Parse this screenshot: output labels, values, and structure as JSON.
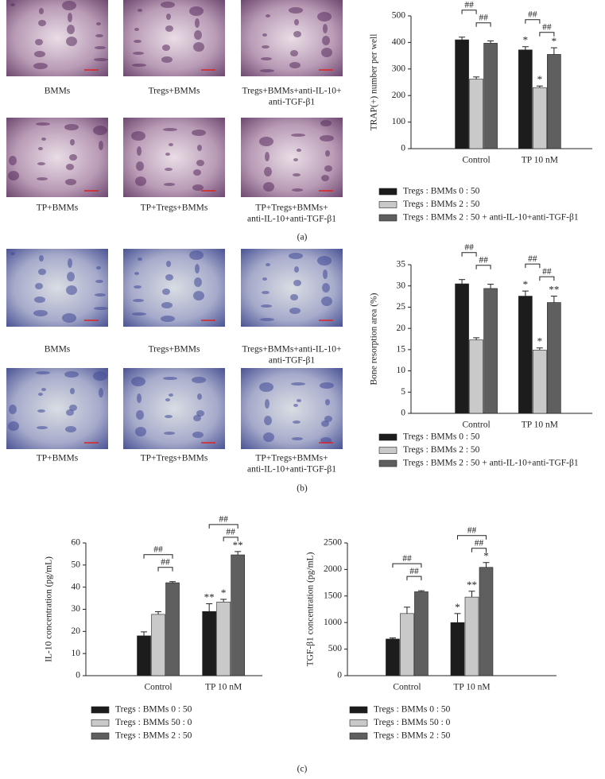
{
  "panels": [
    {
      "label": "(a)",
      "images": [
        {
          "caption": [
            "BMMs"
          ]
        },
        {
          "caption": [
            "Tregs+BMMs"
          ]
        },
        {
          "caption": [
            "Tregs+BMMs+anti-IL-10+",
            "anti-TGF-β1"
          ]
        },
        {
          "caption": [
            "TP+BMMs"
          ]
        },
        {
          "caption": [
            "TP+Tregs+BMMs"
          ]
        },
        {
          "caption": [
            "TP+Tregs+BMMs+",
            "anti-IL-10+anti-TGF-β1"
          ]
        }
      ]
    },
    {
      "label": "(b)",
      "images": [
        {
          "caption": [
            "BMMs"
          ]
        },
        {
          "caption": [
            "Tregs+BMMs"
          ]
        },
        {
          "caption": [
            "Tregs+BMMs+anti-IL-10+",
            "anti-TGF-β1"
          ]
        },
        {
          "caption": [
            "TP+BMMs"
          ]
        },
        {
          "caption": [
            "TP+Tregs+BMMs"
          ]
        },
        {
          "caption": [
            "TP+Tregs+BMMs+",
            "anti-IL-10+anti-TGF-β1"
          ]
        }
      ]
    },
    {
      "label": "(c)",
      "images": []
    }
  ],
  "chart_data": [
    {
      "type": "bar",
      "ylabel": "TRAP(+) number per well",
      "categories": [
        "Control",
        "TP 10 nM"
      ],
      "ylim": [
        0,
        500
      ],
      "yticks": [
        0,
        100,
        200,
        300,
        400,
        500
      ],
      "series": [
        {
          "name": "Tregs : BMMs 0 : 50",
          "color": "#1c1c1c",
          "values": [
            410,
            372
          ],
          "errors": [
            10,
            12
          ],
          "significance": [
            null,
            "*"
          ]
        },
        {
          "name": "Tregs : BMMs 2 : 50",
          "color": "#c9c9c9",
          "values": [
            262,
            230
          ],
          "errors": [
            8,
            6
          ],
          "significance": [
            null,
            "*"
          ]
        },
        {
          "name": "Tregs : BMMs 2 : 50 + anti-IL-10+anti-TGF-β1",
          "color": "#5f5f5f",
          "values": [
            397,
            355
          ],
          "errors": [
            9,
            25
          ],
          "significance": [
            null,
            "*"
          ]
        }
      ],
      "brackets": [
        {
          "category": 0,
          "from": 0,
          "to": 1,
          "label": "##"
        },
        {
          "category": 0,
          "from": 1,
          "to": 2,
          "label": "##"
        },
        {
          "category": 1,
          "from": 0,
          "to": 1,
          "label": "##"
        },
        {
          "category": 1,
          "from": 1,
          "to": 2,
          "label": "##"
        }
      ]
    },
    {
      "type": "bar",
      "ylabel": "Bone resorption area (%)",
      "categories": [
        "Control",
        "TP 10 nM"
      ],
      "ylim": [
        0,
        35
      ],
      "yticks": [
        0,
        5,
        10,
        15,
        20,
        25,
        30,
        35
      ],
      "series": [
        {
          "name": "Tregs : BMMs 0 : 50",
          "color": "#1c1c1c",
          "values": [
            30.5,
            27.6
          ],
          "errors": [
            1,
            1.2
          ],
          "significance": [
            null,
            "*"
          ]
        },
        {
          "name": "Tregs : BMMs 2 : 50",
          "color": "#c9c9c9",
          "values": [
            17.3,
            14.9
          ],
          "errors": [
            0.5,
            0.5
          ],
          "significance": [
            null,
            "*"
          ]
        },
        {
          "name": "Tregs : BMMs 2 : 50 + anti-IL-10+anti-TGF-β1",
          "color": "#5f5f5f",
          "values": [
            29.4,
            26.1
          ],
          "errors": [
            1,
            1.5
          ],
          "significance": [
            null,
            "**"
          ]
        }
      ],
      "brackets": [
        {
          "category": 0,
          "from": 0,
          "to": 1,
          "label": "##"
        },
        {
          "category": 0,
          "from": 1,
          "to": 2,
          "label": "##"
        },
        {
          "category": 1,
          "from": 0,
          "to": 1,
          "label": "##"
        },
        {
          "category": 1,
          "from": 1,
          "to": 2,
          "label": "##"
        }
      ]
    },
    {
      "type": "bar",
      "ylabel": "IL-10 concentration (pg/mL)",
      "categories": [
        "Control",
        "TP 10 nM"
      ],
      "ylim": [
        0,
        60
      ],
      "yticks": [
        0,
        10,
        20,
        30,
        40,
        50,
        60
      ],
      "series": [
        {
          "name": "Tregs : BMMs 0 : 50",
          "color": "#1c1c1c",
          "values": [
            18,
            29
          ],
          "errors": [
            1.8,
            3.5
          ],
          "significance": [
            null,
            "**"
          ]
        },
        {
          "name": "Tregs : BMMs 50 : 0",
          "color": "#c9c9c9",
          "values": [
            27.7,
            33.3
          ],
          "errors": [
            1.2,
            1.2
          ],
          "significance": [
            null,
            "*"
          ]
        },
        {
          "name": "Tregs : BMMs 2 : 50",
          "color": "#5f5f5f",
          "values": [
            42,
            54.6
          ],
          "errors": [
            0.5,
            1.5
          ],
          "significance": [
            null,
            "**"
          ]
        }
      ],
      "brackets": [
        {
          "category": 0,
          "from": 0,
          "to": 2,
          "label": "##"
        },
        {
          "category": 0,
          "from": 1,
          "to": 2,
          "label": "##"
        },
        {
          "category": 1,
          "from": 0,
          "to": 2,
          "label": "##"
        },
        {
          "category": 1,
          "from": 1,
          "to": 2,
          "label": "##"
        }
      ]
    },
    {
      "type": "bar",
      "ylabel": "TGF-β1 concentration (pg/mL)",
      "categories": [
        "Control",
        "TP 10 nM"
      ],
      "ylim": [
        0,
        2500
      ],
      "yticks": [
        0,
        500,
        1000,
        1500,
        2000,
        2500
      ],
      "series": [
        {
          "name": "Tregs : BMMs 0 : 50",
          "color": "#1c1c1c",
          "values": [
            690,
            1000
          ],
          "errors": [
            20,
            170
          ],
          "significance": [
            null,
            "*"
          ]
        },
        {
          "name": "Tregs : BMMs 50 : 0",
          "color": "#c9c9c9",
          "values": [
            1170,
            1480
          ],
          "errors": [
            120,
            110
          ],
          "significance": [
            null,
            "**"
          ]
        },
        {
          "name": "Tregs : BMMs 2 : 50",
          "color": "#5f5f5f",
          "values": [
            1580,
            2040
          ],
          "errors": [
            20,
            90
          ],
          "significance": [
            null,
            "*"
          ]
        }
      ],
      "brackets": [
        {
          "category": 0,
          "from": 0,
          "to": 2,
          "label": "##"
        },
        {
          "category": 0,
          "from": 1,
          "to": 2,
          "label": "##"
        },
        {
          "category": 1,
          "from": 0,
          "to": 2,
          "label": "##"
        },
        {
          "category": 1,
          "from": 1,
          "to": 2,
          "label": "##"
        }
      ]
    }
  ]
}
